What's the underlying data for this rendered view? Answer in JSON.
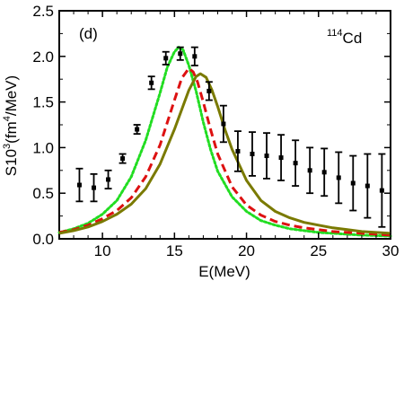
{
  "chart_data": {
    "type": "line",
    "panel_label": "(d)",
    "nucleus_label": {
      "mass": "114",
      "element": "Cd"
    },
    "xlabel": "E(MeV)",
    "ylabel": {
      "main": "S10",
      "sup1": "3",
      "unit_a": "(fm",
      "sup2": "4",
      "unit_b": "/MeV)"
    },
    "xlim": [
      7,
      30
    ],
    "ylim": [
      0,
      2.5
    ],
    "x_ticks": [
      10,
      15,
      20,
      25,
      30
    ],
    "x_tick_labels": [
      "10",
      "15",
      "20",
      "25",
      "30"
    ],
    "y_ticks": [
      0.0,
      0.5,
      1.0,
      1.5,
      2.0,
      2.5
    ],
    "y_tick_labels": [
      "0.0",
      "0.5",
      "1.0",
      "1.5",
      "2.0",
      "2.5"
    ],
    "grid": false,
    "series": [
      {
        "style": "dotted",
        "color": "#22dd22",
        "x": [
          7,
          8,
          9,
          10,
          11,
          12,
          13,
          14,
          14.5,
          15,
          15.3,
          15.6,
          16,
          16.5,
          17,
          17.5,
          18,
          19,
          20,
          21,
          22,
          23,
          24,
          25,
          26,
          27,
          28,
          29,
          30
        ],
        "y": [
          0.07,
          0.11,
          0.17,
          0.27,
          0.42,
          0.68,
          1.08,
          1.6,
          1.88,
          2.05,
          2.1,
          2.07,
          1.9,
          1.62,
          1.28,
          0.98,
          0.74,
          0.46,
          0.3,
          0.2,
          0.15,
          0.11,
          0.09,
          0.07,
          0.06,
          0.05,
          0.04,
          0.035,
          0.03
        ]
      },
      {
        "style": "dashed",
        "color": "#dd1111",
        "x": [
          7,
          8,
          9,
          10,
          11,
          12,
          13,
          14,
          15,
          15.5,
          16,
          16.3,
          16.6,
          17,
          17.5,
          18,
          19,
          20,
          21,
          22,
          23,
          24,
          25,
          26,
          27,
          28,
          29,
          30
        ],
        "y": [
          0.07,
          0.1,
          0.15,
          0.22,
          0.31,
          0.45,
          0.68,
          1.03,
          1.52,
          1.76,
          1.87,
          1.83,
          1.72,
          1.5,
          1.2,
          0.93,
          0.57,
          0.37,
          0.26,
          0.19,
          0.15,
          0.12,
          0.1,
          0.08,
          0.07,
          0.06,
          0.05,
          0.04
        ]
      },
      {
        "style": "solid",
        "color": "#7a7a00",
        "x": [
          7,
          8,
          9,
          10,
          11,
          12,
          13,
          14,
          15,
          16,
          16.5,
          16.8,
          17.2,
          17.6,
          18,
          18.5,
          19,
          20,
          21,
          22,
          23,
          24,
          25,
          26,
          27,
          28,
          29,
          30
        ],
        "y": [
          0.06,
          0.09,
          0.13,
          0.19,
          0.27,
          0.38,
          0.55,
          0.82,
          1.2,
          1.63,
          1.78,
          1.81,
          1.77,
          1.63,
          1.45,
          1.2,
          0.98,
          0.64,
          0.42,
          0.3,
          0.23,
          0.18,
          0.15,
          0.12,
          0.1,
          0.08,
          0.07,
          0.06
        ]
      }
    ],
    "experimental": {
      "marker": "square",
      "color": "#000000",
      "x": [
        8.4,
        9.4,
        10.4,
        11.4,
        12.4,
        13.4,
        14.4,
        15.4,
        16.4,
        17.4,
        18.4,
        19.4,
        20.4,
        21.4,
        22.4,
        23.4,
        24.4,
        25.4,
        26.4,
        27.4,
        28.4,
        29.4
      ],
      "y": [
        0.59,
        0.56,
        0.65,
        0.88,
        1.2,
        1.71,
        1.98,
        2.03,
        2.0,
        1.62,
        1.26,
        0.96,
        0.93,
        0.91,
        0.89,
        0.83,
        0.75,
        0.73,
        0.67,
        0.61,
        0.58,
        0.53
      ],
      "err": [
        0.18,
        0.15,
        0.1,
        0.05,
        0.05,
        0.07,
        0.07,
        0.07,
        0.1,
        0.1,
        0.2,
        0.22,
        0.24,
        0.25,
        0.25,
        0.25,
        0.25,
        0.26,
        0.28,
        0.3,
        0.35,
        0.4
      ]
    }
  }
}
